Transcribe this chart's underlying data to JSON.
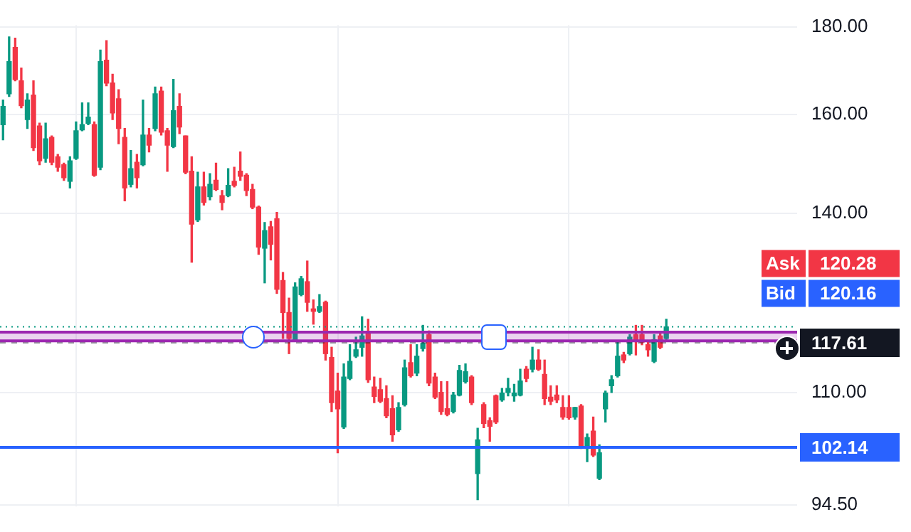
{
  "chart_data": {
    "type": "candlestick",
    "categories": [
      null,
      null,
      null,
      null,
      null,
      null,
      null,
      null,
      null,
      null,
      null,
      null,
      null,
      null,
      null,
      null,
      null,
      null,
      null,
      null,
      null,
      null,
      null,
      null,
      null,
      null,
      null,
      null,
      null,
      null,
      null,
      null,
      null,
      null,
      null,
      null,
      null,
      null,
      null,
      null,
      null,
      null,
      null,
      null,
      null,
      null,
      null,
      null,
      null,
      null,
      null,
      null,
      null,
      null,
      null,
      null,
      null,
      null,
      null,
      null,
      null,
      null,
      null,
      null,
      null,
      null,
      null,
      null,
      null,
      null,
      null,
      null,
      null,
      null,
      null,
      null,
      null,
      null,
      null,
      null,
      null,
      null,
      null,
      null,
      null,
      null,
      null,
      null,
      null,
      null,
      null,
      null,
      null,
      null,
      null,
      null,
      null,
      null,
      null,
      null,
      null,
      null,
      null,
      null,
      null,
      null,
      null,
      null,
      null,
      null,
      null,
      null,
      null,
      null,
      null,
      null,
      null,
      null,
      null,
      null,
      null,
      null,
      null,
      null,
      null,
      null,
      null,
      null,
      null,
      null,
      null
    ],
    "ohlc": [
      [
        157.8,
        163.1,
        154.6,
        161.7
      ],
      [
        164.5,
        177.6,
        163.9,
        171.8
      ],
      [
        175.1,
        177.3,
        167.4,
        167.7
      ],
      [
        167.4,
        170.3,
        161.4,
        161.9
      ],
      [
        158.9,
        164.5,
        157.0,
        163.1
      ],
      [
        164.2,
        167.4,
        152.4,
        153.0
      ],
      [
        157.5,
        158.1,
        149.5,
        150.3
      ],
      [
        150.8,
        158.1,
        150.0,
        154.8
      ],
      [
        155.1,
        155.4,
        149.5,
        150.0
      ],
      [
        151.1,
        151.6,
        148.2,
        149.0
      ],
      [
        149.5,
        149.8,
        146.4,
        146.9
      ],
      [
        146.2,
        151.1,
        144.9,
        150.3
      ],
      [
        150.8,
        158.4,
        150.6,
        156.5
      ],
      [
        156.7,
        162.5,
        156.5,
        157.8
      ],
      [
        158.1,
        162.5,
        157.8,
        159.4
      ],
      [
        157.8,
        158.4,
        147.2,
        147.4
      ],
      [
        149.0,
        174.5,
        148.5,
        171.8
      ],
      [
        172.1,
        176.7,
        166.3,
        166.9
      ],
      [
        166.9,
        168.9,
        158.9,
        160.3
      ],
      [
        163.4,
        165.4,
        153.8,
        157.0
      ],
      [
        155.1,
        157.0,
        142.4,
        144.9
      ],
      [
        145.6,
        152.4,
        145.1,
        148.7
      ],
      [
        150.0,
        151.6,
        144.9,
        146.9
      ],
      [
        149.5,
        163.1,
        149.3,
        155.6
      ],
      [
        155.6,
        157.0,
        152.1,
        153.5
      ],
      [
        157.0,
        166.0,
        156.5,
        164.5
      ],
      [
        165.1,
        166.0,
        155.6,
        156.2
      ],
      [
        156.5,
        157.0,
        148.2,
        153.5
      ],
      [
        153.2,
        167.7,
        153.0,
        160.8
      ],
      [
        161.7,
        164.5,
        155.9,
        157.3
      ],
      [
        155.4,
        155.4,
        147.7,
        148.0
      ],
      [
        148.2,
        151.1,
        131.1,
        138.0
      ],
      [
        138.8,
        148.0,
        138.5,
        145.1
      ],
      [
        145.1,
        148.0,
        141.6,
        142.1
      ],
      [
        143.2,
        147.7,
        142.6,
        145.6
      ],
      [
        146.4,
        149.8,
        144.4,
        144.6
      ],
      [
        143.4,
        144.4,
        140.7,
        142.1
      ],
      [
        143.4,
        148.7,
        143.2,
        145.4
      ],
      [
        146.2,
        149.0,
        145.1,
        145.4
      ],
      [
        148.2,
        152.1,
        146.4,
        147.2
      ],
      [
        147.4,
        147.7,
        143.4,
        144.4
      ],
      [
        144.6,
        145.6,
        140.9,
        141.2
      ],
      [
        141.2,
        141.4,
        132.5,
        133.8
      ],
      [
        133.6,
        138.3,
        127.5,
        136.8
      ],
      [
        137.5,
        138.5,
        131.5,
        134.3
      ],
      [
        139.0,
        140.2,
        125.7,
        126.4
      ],
      [
        127.9,
        129.3,
        118.3,
        122.5
      ],
      [
        122.5,
        124.9,
        115.9,
        118.3
      ],
      [
        118.1,
        127.5,
        117.9,
        126.8
      ],
      [
        125.5,
        128.6,
        125.3,
        128.2
      ],
      [
        127.7,
        131.3,
        122.7,
        124.2
      ],
      [
        123.1,
        124.6,
        120.6,
        122.7
      ],
      [
        122.7,
        125.5,
        122.5,
        123.5
      ],
      [
        124.2,
        124.4,
        114.9,
        115.9
      ],
      [
        115.3,
        116.9,
        107.2,
        108.5
      ],
      [
        110.2,
        112.9,
        101.4,
        107.6
      ],
      [
        105.0,
        114.3,
        104.8,
        112.3
      ],
      [
        112.1,
        117.3,
        111.9,
        114.7
      ],
      [
        115.5,
        118.5,
        115.3,
        116.5
      ],
      [
        116.9,
        121.8,
        115.5,
        118.7
      ],
      [
        119.3,
        121.4,
        111.5,
        111.9
      ],
      [
        110.8,
        112.3,
        108.5,
        109.4
      ],
      [
        110.4,
        112.1,
        108.5,
        108.7
      ],
      [
        109.1,
        111.0,
        106.3,
        106.6
      ],
      [
        107.6,
        109.5,
        103.0,
        103.9
      ],
      [
        104.6,
        108.5,
        104.4,
        107.8
      ],
      [
        108.2,
        114.9,
        108.0,
        113.7
      ],
      [
        114.5,
        117.3,
        112.3,
        112.5
      ],
      [
        112.9,
        117.3,
        112.5,
        115.5
      ],
      [
        116.7,
        120.4,
        116.3,
        117.5
      ],
      [
        118.9,
        119.5,
        111.0,
        111.4
      ],
      [
        112.3,
        112.9,
        109.1,
        109.3
      ],
      [
        110.0,
        111.6,
        106.8,
        107.2
      ],
      [
        107.6,
        111.6,
        106.6,
        106.8
      ],
      [
        107.2,
        110.0,
        107.0,
        109.6
      ],
      [
        109.6,
        114.1,
        109.5,
        113.3
      ],
      [
        111.6,
        114.3,
        111.4,
        113.1
      ],
      [
        112.3,
        112.5,
        108.2,
        108.5
      ],
      [
        98.6,
        104.8,
        95.2,
        103.2
      ],
      [
        108.2,
        108.5,
        104.9,
        105.5
      ],
      [
        105.9,
        106.3,
        103.0,
        105.1
      ],
      [
        109.5,
        109.6,
        105.5,
        105.7
      ],
      [
        108.9,
        110.6,
        108.7,
        109.9
      ],
      [
        110.0,
        112.1,
        109.5,
        110.6
      ],
      [
        109.5,
        111.2,
        108.7,
        109.9
      ],
      [
        109.6,
        113.5,
        109.5,
        111.7
      ],
      [
        113.5,
        113.9,
        111.6,
        112.1
      ],
      [
        113.5,
        116.9,
        113.1,
        114.9
      ],
      [
        114.9,
        116.5,
        113.3,
        113.5
      ],
      [
        112.7,
        114.9,
        108.2,
        109.1
      ],
      [
        109.3,
        111.0,
        108.2,
        108.7
      ],
      [
        109.6,
        111.0,
        108.5,
        108.9
      ],
      [
        107.8,
        109.5,
        106.1,
        106.4
      ],
      [
        107.8,
        109.5,
        106.1,
        106.3
      ],
      [
        106.4,
        107.8,
        106.1,
        107.8
      ],
      [
        108.0,
        108.2,
        102.0,
        102.1
      ],
      [
        102.0,
        104.0,
        100.2,
        103.5
      ],
      [
        104.4,
        106.4,
        100.9,
        101.1
      ],
      [
        98.0,
        102.5,
        97.8,
        101.4
      ],
      [
        107.6,
        110.2,
        105.7,
        109.9
      ],
      [
        111.0,
        112.5,
        110.0,
        111.9
      ],
      [
        112.5,
        117.9,
        112.3,
        115.5
      ],
      [
        115.7,
        116.1,
        114.5,
        114.9
      ],
      [
        115.9,
        118.9,
        115.7,
        118.5
      ],
      [
        118.9,
        120.4,
        115.7,
        117.9
      ],
      [
        118.9,
        120.4,
        117.3,
        117.7
      ],
      [
        117.3,
        117.9,
        115.5,
        116.5
      ],
      [
        114.7,
        118.9,
        114.5,
        118.1
      ],
      [
        118.7,
        119.1,
        116.7,
        116.9
      ],
      [
        118.3,
        121.4,
        118.1,
        120.16
      ],
      null,
      null,
      null,
      null,
      null,
      null,
      null,
      null,
      null,
      null,
      null,
      null,
      null,
      null,
      null,
      null,
      null,
      null,
      null,
      null,
      null
    ],
    "colors": [
      "#089981",
      "#089981",
      "#f23645",
      "#f23645",
      "#089981",
      "#f23645",
      "#f23645",
      "#089981",
      "#f23645",
      "#f23645",
      "#f23645",
      "#089981",
      "#089981",
      "#089981",
      "#089981",
      "#f23645",
      "#089981",
      "#f23645",
      "#f23645",
      "#f23645",
      "#f23645",
      "#089981",
      "#f23645",
      "#089981",
      "#f23645",
      "#089981",
      "#f23645",
      "#f23645",
      "#089981",
      "#f23645",
      "#f23645",
      "#f23645",
      "#089981",
      "#f23645",
      "#089981",
      "#f23645",
      "#f23645",
      "#089981",
      "#f23645",
      "#f23645",
      "#f23645",
      "#f23645",
      "#f23645",
      "#089981",
      "#f23645",
      "#f23645",
      "#f23645",
      "#f23645",
      "#089981",
      "#089981",
      "#f23645",
      "#f23645",
      "#089981",
      "#f23645",
      "#f23645",
      "#f23645",
      "#089981",
      "#089981",
      "#089981",
      "#089981",
      "#f23645",
      "#f23645",
      "#f23645",
      "#f23645",
      "#f23645",
      "#089981",
      "#089981",
      "#f23645",
      "#089981",
      "#089981",
      "#f23645",
      "#f23645",
      "#f23645",
      "#f23645",
      "#089981",
      "#089981",
      "#089981",
      "#f23645",
      "#089981",
      "#f23645",
      "#f23645",
      "#f23645",
      "#089981",
      "#089981",
      "#089981",
      "#089981",
      "#f23645",
      "#089981",
      "#f23645",
      "#f23645",
      "#f23645",
      "#f23645",
      "#f23645",
      "#f23645",
      "#089981",
      "#f23645",
      "#089981",
      "#f23645",
      "#089981",
      "#089981",
      "#089981",
      "#089981",
      "#f23645",
      "#089981",
      "#f23645",
      "#f23645",
      "#f23645",
      "#089981",
      "#f23645",
      "#089981",
      null,
      null,
      null,
      null,
      null,
      null,
      null,
      null,
      null,
      null,
      null,
      null,
      null,
      null,
      null,
      null,
      null,
      null,
      null,
      null,
      null
    ],
    "ylim": [
      94.3,
      180.4
    ],
    "yticks": [
      {
        "value": 94.5,
        "label": "94.50"
      },
      {
        "value": 110,
        "label": "110.00"
      },
      {
        "value": 140,
        "label": "140.00"
      },
      {
        "value": 160,
        "label": "160.00"
      },
      {
        "value": 180,
        "label": "180.00"
      }
    ],
    "log": true,
    "grid": true,
    "tick_labels": "y",
    "legend": false,
    "ref_lines": [
      {
        "axis": "y",
        "value": 120.16,
        "color": "#089981",
        "line_style": "dotted"
      },
      {
        "axis": "y",
        "value": 117.61,
        "label": "117.61",
        "color": "#131722",
        "line_style": "dashed"
      },
      {
        "axis": "y",
        "value": 102.14,
        "label": "102.14",
        "color": "#2962ff",
        "line_style": "solid"
      },
      {
        "axis": "y",
        "value": 117.9,
        "color": "#9c27b0",
        "line_style": "solid"
      },
      {
        "axis": "y",
        "value": 119.3,
        "color": "#9c27b0",
        "line_style": "solid"
      }
    ],
    "bands": [
      {
        "axis": "y",
        "from": 117.9,
        "to": 119.3,
        "color": "#9c27b0"
      }
    ],
    "annotations": [
      "Ask",
      "120.28",
      "Bid",
      "120.16"
    ]
  }
}
